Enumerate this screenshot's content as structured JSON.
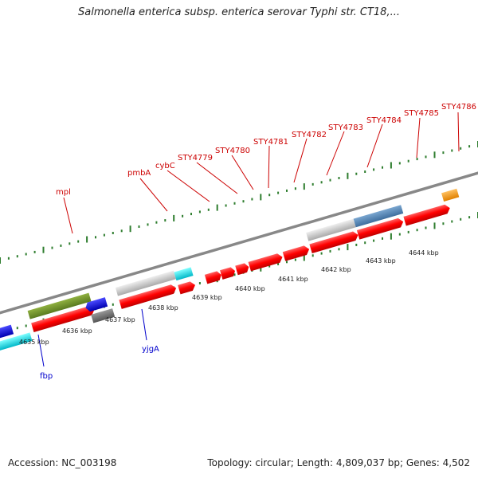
{
  "header": {
    "title": "Salmonella enterica subsp. enterica serovar Typhi str. CT18,..."
  },
  "footer": {
    "accession": "Accession: NC_003198",
    "summary": "Topology: circular; Length: 4,809,037 bp; Genes: 4,502"
  },
  "colors": {
    "cds": "#ff0000",
    "label_forward": "#cc0000",
    "label_reverse": "#0000cc",
    "backbone": "#888888",
    "tick": "#2e7d2e"
  },
  "scale": {
    "unit": "kbp",
    "labels": [
      "4635 kbp",
      "4636 kbp",
      "4637 kbp",
      "4638 kbp",
      "4639 kbp",
      "4640 kbp",
      "4641 kbp",
      "4642 kbp",
      "4643 kbp",
      "4644 kbp"
    ]
  },
  "forward_gene_labels": [
    "mpl",
    "pmbA",
    "cybC",
    "STY4779",
    "STY4780",
    "STY4781",
    "STY4782",
    "STY4783",
    "STY4784",
    "STY4785",
    "STY4786"
  ],
  "reverse_gene_labels": [
    "fbp",
    "yjgA"
  ]
}
